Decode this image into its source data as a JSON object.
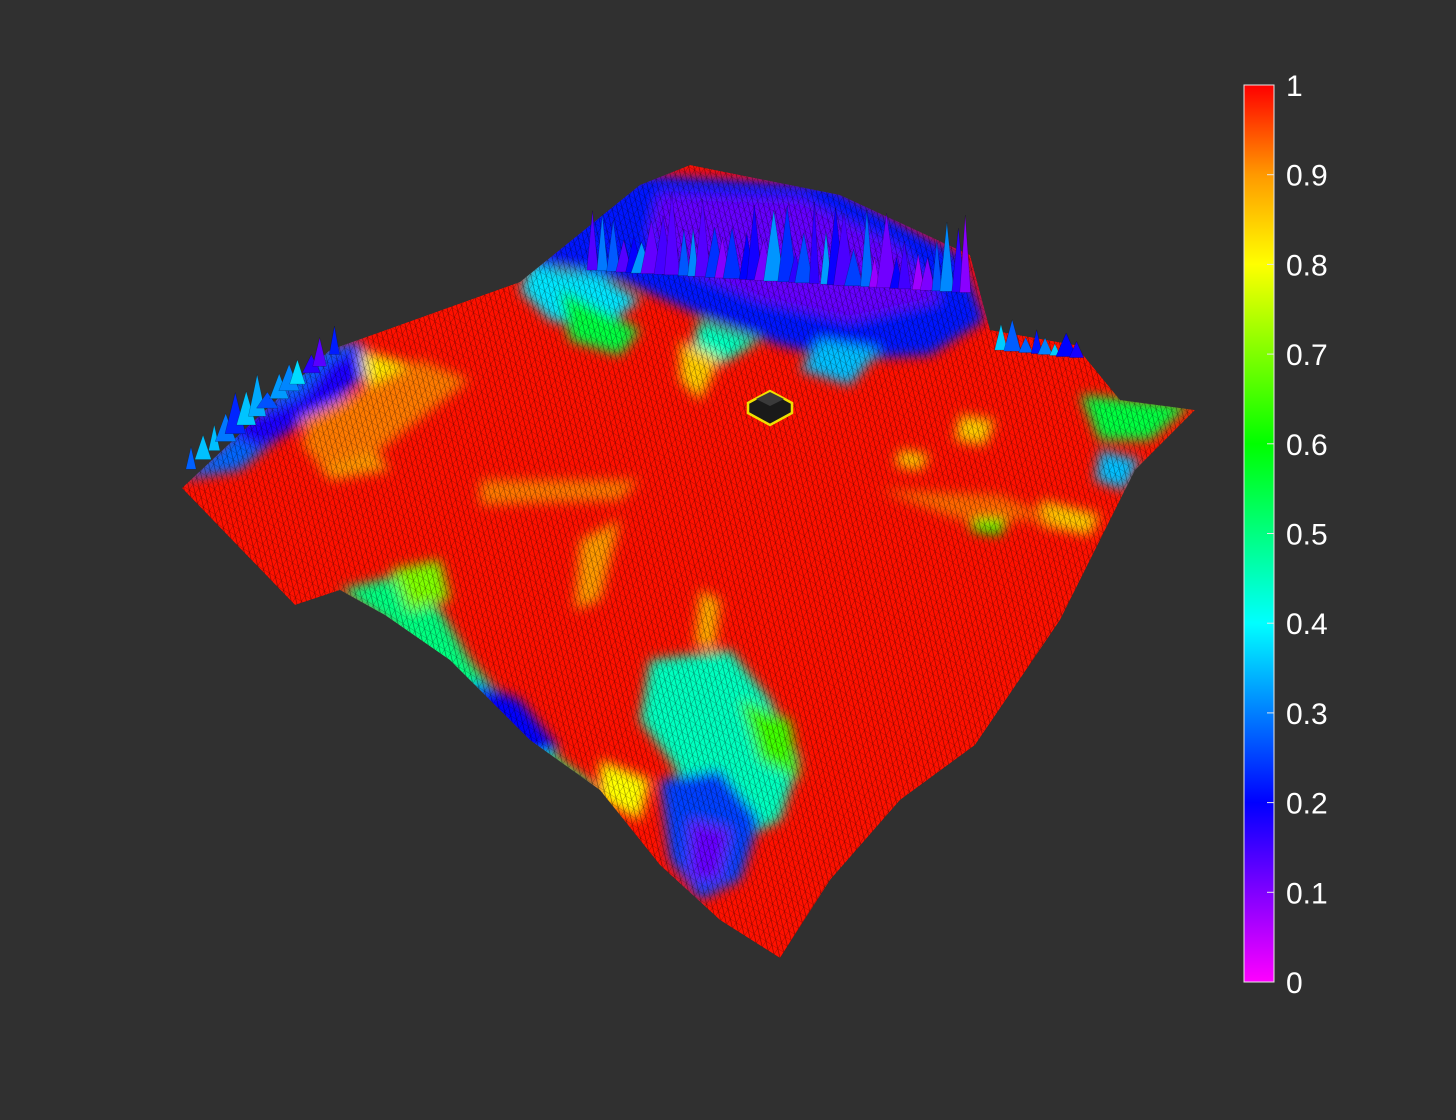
{
  "background": "#303030",
  "chart_data": {
    "type": "heatmap",
    "subtype": "3d-surface",
    "title": "",
    "xlabel": "",
    "ylabel": "",
    "grid": false,
    "mesh_edges": true,
    "mesh_edge_color": "#000000",
    "colormap": "rainbow (magenta → blue → cyan → green → yellow → orange → red)",
    "clim": [
      0,
      1
    ],
    "colorbar": {
      "location": "right",
      "ticks": [
        0,
        0.1,
        0.2,
        0.3,
        0.4,
        0.5,
        0.6,
        0.7,
        0.8,
        0.9,
        1
      ],
      "tick_labels": [
        "0",
        "0.1",
        "0.2",
        "0.3",
        "0.4",
        "0.5",
        "0.6",
        "0.7",
        "0.8",
        "0.9",
        "1"
      ],
      "stops": [
        {
          "value": 0.0,
          "color": "#ff00ff"
        },
        {
          "value": 0.2,
          "color": "#0000ff"
        },
        {
          "value": 0.4,
          "color": "#00ffff"
        },
        {
          "value": 0.6,
          "color": "#00ff00"
        },
        {
          "value": 0.8,
          "color": "#ffff00"
        },
        {
          "value": 0.9,
          "color": "#ff9900"
        },
        {
          "value": 1.0,
          "color": "#ff0000"
        }
      ]
    },
    "robot_marker": {
      "icon": "vehicle-icon",
      "color": "#1a1a1a",
      "outline": "#f0e000"
    }
  }
}
